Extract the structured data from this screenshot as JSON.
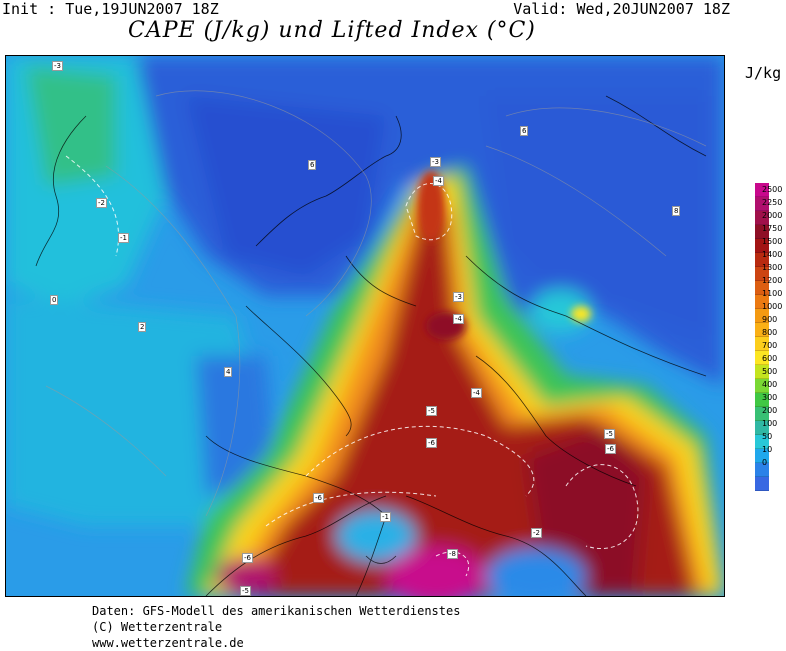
{
  "header": {
    "init": "Init : Tue,19JUN2007 18Z",
    "valid": "Valid: Wed,20JUN2007 18Z",
    "title": "CAPE (J/kg) und Lifted Index (°C)"
  },
  "legend": {
    "unit": "J/kg",
    "levels": [
      "2500",
      "2250",
      "2000",
      "1750",
      "1500",
      "1400",
      "1300",
      "1200",
      "1100",
      "1000",
      "900",
      "800",
      "700",
      "600",
      "500",
      "400",
      "300",
      "200",
      "100",
      "50",
      "10",
      "0"
    ],
    "colors": [
      "#c8088c",
      "#b00f6e",
      "#a0104a",
      "#8e0f26",
      "#a21414",
      "#b82a10",
      "#cc4412",
      "#dc5e12",
      "#ec7a12",
      "#f49a12",
      "#fab016",
      "#fcce1c",
      "#fce622",
      "#c4e41e",
      "#7ad834",
      "#40c844",
      "#38c074",
      "#30b8a4",
      "#28c8d8",
      "#20a8ec",
      "#2b82e8",
      "#3868e2"
    ]
  },
  "contour_labels": [
    "-3",
    "-2",
    "-1",
    "0",
    "2",
    "4",
    "6",
    "8",
    "-3",
    "-4",
    "-5",
    "-6",
    "-8",
    "-1",
    "-2",
    "-4",
    "-5",
    "-6",
    "-5"
  ],
  "footer": {
    "line1": "Daten: GFS-Modell des amerikanischen Wetterdienstes",
    "line2": "(C) Wetterzentrale",
    "line3": "www.wetterzentrale.de"
  }
}
